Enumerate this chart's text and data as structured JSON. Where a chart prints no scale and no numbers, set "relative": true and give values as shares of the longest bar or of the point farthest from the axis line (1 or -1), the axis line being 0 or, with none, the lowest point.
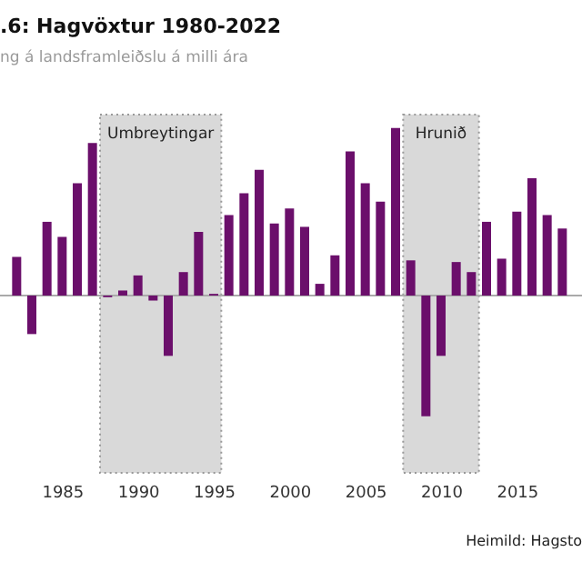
{
  "chart_data": {
    "type": "bar",
    "title": ".6: Hagvöxtur 1980-2022",
    "subtitle": "ng á landsframleiðslu á milli ára",
    "relative": true,
    "x": [
      1982,
      1983,
      1984,
      1985,
      1986,
      1987,
      1988,
      1989,
      1990,
      1991,
      1992,
      1993,
      1994,
      1995,
      1996,
      1997,
      1998,
      1999,
      2000,
      2001,
      2002,
      2003,
      2004,
      2005,
      2006,
      2007,
      2008,
      2009,
      2010,
      2011,
      2012,
      2013,
      2014,
      2015,
      2016,
      2017,
      2018
    ],
    "series": [
      {
        "color": "#6b0f6b",
        "values": [
          0.23,
          -0.23,
          0.44,
          0.35,
          0.67,
          0.91,
          -0.01,
          0.03,
          0.12,
          -0.03,
          -0.36,
          0.14,
          0.38,
          0.01,
          0.48,
          0.61,
          0.75,
          0.43,
          0.52,
          0.41,
          0.07,
          0.24,
          0.86,
          0.67,
          0.56,
          1,
          0.21,
          -0.72,
          -0.36,
          0.2,
          0.14,
          0.44,
          0.22,
          0.5,
          0.7,
          0.48,
          0.4
        ]
      }
    ],
    "xlim": [
      1981.5,
      2018.7
    ],
    "xticks": [
      1985,
      1990,
      1995,
      2000,
      2005,
      2010,
      2015
    ],
    "bands": [
      {
        "axis": "x",
        "from": 1987.5,
        "to": 1995.5,
        "label": "Umbreytingar",
        "color": "#d9d9d9"
      },
      {
        "axis": "x",
        "from": 2007.5,
        "to": 2012.5,
        "label": "Hrunið",
        "color": "#d9d9d9"
      }
    ],
    "annotations": [
      "Heimild: Hagsto"
    ],
    "tick_labels": "x",
    "grid": false
  }
}
